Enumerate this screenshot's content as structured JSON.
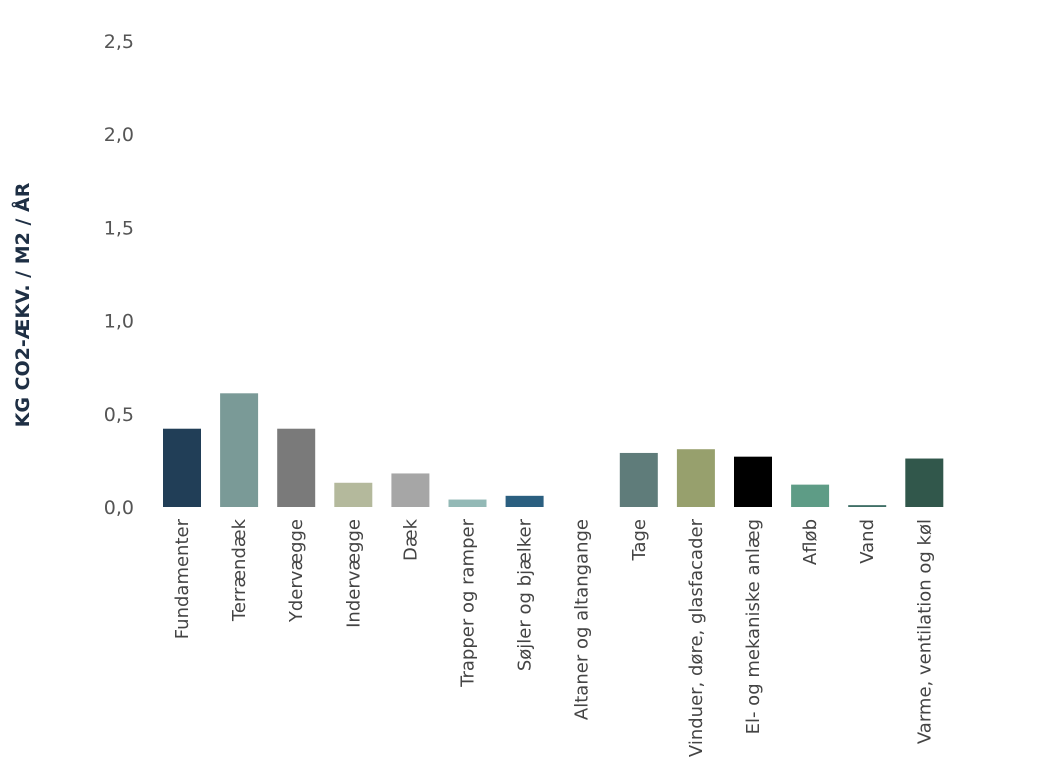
{
  "chart_data": {
    "type": "bar",
    "title": "",
    "xlabel": "",
    "ylabel": "KG CO2-ÆKV. / M2 / ÅR",
    "ylim": [
      0,
      2.5
    ],
    "yticks": [
      "0,0",
      "0,5",
      "1,0",
      "1,5",
      "2,0",
      "2,5"
    ],
    "yticks_values": [
      0,
      0.5,
      1.0,
      1.5,
      2.0,
      2.5
    ],
    "grid": false,
    "legend": "none",
    "categories": [
      "Fundamenter",
      "Terrændæk",
      "Ydervægge",
      "Indervægge",
      "Dæk",
      "Trapper og ramper",
      "Søjler og bjælker",
      "Altaner og altangange",
      "Tage",
      "Vinduer, døre, glasfacader",
      "El- og mekaniske anlæg",
      "Afløb",
      "Vand",
      "Varme, ventilation og køl"
    ],
    "values": [
      0.42,
      0.61,
      0.42,
      0.13,
      0.18,
      0.04,
      0.06,
      0.0,
      0.29,
      0.31,
      0.27,
      0.12,
      0.01,
      0.26
    ],
    "colors": [
      "#213e57",
      "#7a9a97",
      "#7a7a7a",
      "#b4b99c",
      "#a6a6a6",
      "#93b9b6",
      "#2b5f80",
      "#dddddd",
      "#5f7c7a",
      "#97a06d",
      "#000000",
      "#5e9c86",
      "#3f6f66",
      "#31574b"
    ]
  }
}
